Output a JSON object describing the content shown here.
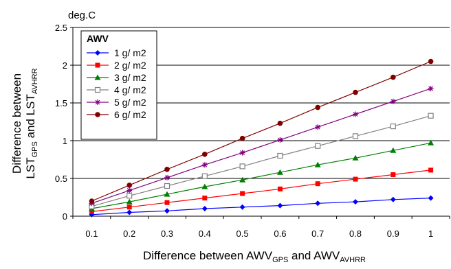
{
  "chart_data": {
    "type": "line",
    "title": "",
    "y_unit": "deg.C",
    "xlabel": {
      "prefix": "Difference between AWV",
      "sub1": "GPS",
      "middle": " and AWV",
      "sub2": "AVHRR"
    },
    "ylabel": {
      "line1": "Difference between",
      "line2_prefix": "LST",
      "line2_sub1": "GPS",
      "line2_middle": " and LST",
      "line2_sub2": "AVHRR"
    },
    "x": [
      0.1,
      0.2,
      0.3,
      0.4,
      0.5,
      0.6,
      0.7,
      0.8,
      0.9,
      1
    ],
    "x_tick_labels": [
      "0.1",
      "0.2",
      "0.3",
      "0.4",
      "0.5",
      "0.6",
      "0.7",
      "0.8",
      "0.9",
      "1"
    ],
    "ylim": [
      0,
      2.5
    ],
    "y_ticks": [
      0,
      0.5,
      1,
      1.5,
      2,
      2.5
    ],
    "y_tick_labels": [
      "0",
      "0.5",
      "1",
      "1.5",
      "2",
      "2.5"
    ],
    "grid": "horizontal",
    "legend": {
      "title": "AWV",
      "placement": "top-left"
    },
    "series": [
      {
        "name": "1 g/ m2",
        "color": "#0000ff",
        "marker": "diamond",
        "values": [
          0.02,
          0.05,
          0.07,
          0.1,
          0.12,
          0.14,
          0.17,
          0.19,
          0.22,
          0.24
        ]
      },
      {
        "name": "2 g/ m2",
        "color": "#ff0000",
        "marker": "square",
        "values": [
          0.06,
          0.12,
          0.18,
          0.24,
          0.3,
          0.36,
          0.43,
          0.49,
          0.55,
          0.61
        ]
      },
      {
        "name": "3 g/ m2",
        "color": "#008000",
        "marker": "triangle",
        "values": [
          0.1,
          0.19,
          0.29,
          0.39,
          0.48,
          0.58,
          0.68,
          0.77,
          0.87,
          0.97
        ]
      },
      {
        "name": "4 g/ m2",
        "color": "#808080",
        "marker": "open-square",
        "values": [
          0.13,
          0.27,
          0.4,
          0.53,
          0.66,
          0.8,
          0.93,
          1.06,
          1.19,
          1.33
        ]
      },
      {
        "name": "5 g/ m2",
        "color": "#800080",
        "marker": "star",
        "values": [
          0.17,
          0.34,
          0.51,
          0.68,
          0.84,
          1.01,
          1.18,
          1.35,
          1.52,
          1.69
        ]
      },
      {
        "name": "6 g/ m2",
        "color": "#800000",
        "marker": "circle",
        "values": [
          0.2,
          0.41,
          0.62,
          0.82,
          1.03,
          1.23,
          1.44,
          1.64,
          1.84,
          2.05
        ]
      }
    ]
  }
}
